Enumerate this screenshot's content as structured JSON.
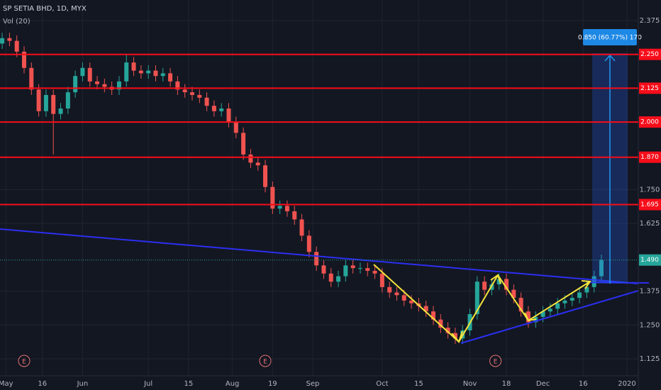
{
  "chart_data": {
    "type": "candlestick",
    "title": "SP SETIA BHD, 1D, MYX",
    "subtitle": "Vol (20)",
    "x": [
      0,
      2,
      4,
      6,
      8,
      10,
      12,
      14,
      16,
      18,
      20,
      22,
      24,
      26,
      28,
      30,
      32,
      34,
      36,
      38,
      40,
      42,
      44,
      46,
      48,
      50,
      52,
      54,
      56,
      58,
      60,
      62,
      64,
      66,
      68,
      70,
      72,
      74,
      76,
      78,
      80,
      82,
      84,
      86,
      88,
      90,
      92,
      94,
      96,
      98,
      100,
      102,
      104,
      106,
      108,
      110,
      112,
      114,
      116,
      118,
      120,
      122,
      124,
      126,
      128,
      130,
      132,
      134,
      136,
      138,
      140,
      142,
      144,
      146,
      148,
      150,
      152,
      154,
      156,
      158,
      160,
      162,
      164
    ],
    "open": [
      2.29,
      2.31,
      2.3,
      2.26,
      2.2,
      2.12,
      2.04,
      2.1,
      2.03,
      2.05,
      2.11,
      2.17,
      2.2,
      2.15,
      2.14,
      2.13,
      2.12,
      2.15,
      2.22,
      2.19,
      2.18,
      2.19,
      2.17,
      2.18,
      2.15,
      2.12,
      2.11,
      2.1,
      2.09,
      2.06,
      2.04,
      2.05,
      2.0,
      1.96,
      1.88,
      1.85,
      1.84,
      1.76,
      1.68,
      1.69,
      1.67,
      1.64,
      1.58,
      1.52,
      1.47,
      1.44,
      1.41,
      1.43,
      1.47,
      1.46,
      1.46,
      1.45,
      1.44,
      1.39,
      1.37,
      1.36,
      1.34,
      1.33,
      1.32,
      1.3,
      1.27,
      1.24,
      1.22,
      1.2,
      1.23,
      1.29,
      1.41,
      1.38,
      1.4,
      1.42,
      1.38,
      1.35,
      1.3,
      1.26,
      1.28,
      1.3,
      1.31,
      1.33,
      1.34,
      1.35,
      1.37,
      1.39,
      1.43
    ],
    "high": [
      2.33,
      2.33,
      2.32,
      2.28,
      2.22,
      2.14,
      2.12,
      2.12,
      2.07,
      2.13,
      2.19,
      2.22,
      2.22,
      2.17,
      2.16,
      2.15,
      2.17,
      2.25,
      2.24,
      2.21,
      2.21,
      2.21,
      2.2,
      2.2,
      2.17,
      2.14,
      2.13,
      2.12,
      2.11,
      2.08,
      2.07,
      2.07,
      2.02,
      1.98,
      1.9,
      1.87,
      1.86,
      1.78,
      1.71,
      1.71,
      1.69,
      1.66,
      1.6,
      1.54,
      1.49,
      1.46,
      1.45,
      1.49,
      1.49,
      1.48,
      1.48,
      1.47,
      1.46,
      1.41,
      1.39,
      1.38,
      1.36,
      1.35,
      1.34,
      1.32,
      1.29,
      1.26,
      1.24,
      1.25,
      1.31,
      1.43,
      1.43,
      1.42,
      1.44,
      1.44,
      1.4,
      1.37,
      1.32,
      1.3,
      1.32,
      1.33,
      1.35,
      1.36,
      1.37,
      1.39,
      1.41,
      1.45,
      1.51
    ],
    "low": [
      2.27,
      2.28,
      2.24,
      2.18,
      2.1,
      2.02,
      2.02,
      1.88,
      2.01,
      2.03,
      2.09,
      2.15,
      2.13,
      2.12,
      2.11,
      2.1,
      2.1,
      2.13,
      2.17,
      2.16,
      2.16,
      2.15,
      2.15,
      2.13,
      2.1,
      2.09,
      2.08,
      2.07,
      2.04,
      2.02,
      2.02,
      1.98,
      1.94,
      1.86,
      1.83,
      1.82,
      1.74,
      1.66,
      1.66,
      1.65,
      1.62,
      1.56,
      1.5,
      1.45,
      1.42,
      1.39,
      1.39,
      1.41,
      1.44,
      1.44,
      1.43,
      1.42,
      1.37,
      1.35,
      1.34,
      1.32,
      1.31,
      1.3,
      1.28,
      1.25,
      1.22,
      1.2,
      1.18,
      1.18,
      1.21,
      1.27,
      1.36,
      1.36,
      1.38,
      1.36,
      1.33,
      1.28,
      1.24,
      1.24,
      1.26,
      1.28,
      1.29,
      1.31,
      1.32,
      1.33,
      1.35,
      1.37,
      1.41
    ],
    "close": [
      2.31,
      2.3,
      2.26,
      2.2,
      2.12,
      2.04,
      2.1,
      2.03,
      2.05,
      2.11,
      2.17,
      2.2,
      2.15,
      2.14,
      2.13,
      2.12,
      2.15,
      2.22,
      2.19,
      2.18,
      2.19,
      2.17,
      2.18,
      2.15,
      2.12,
      2.11,
      2.1,
      2.09,
      2.06,
      2.04,
      2.05,
      2.0,
      1.96,
      1.88,
      1.85,
      1.84,
      1.76,
      1.68,
      1.69,
      1.67,
      1.64,
      1.58,
      1.52,
      1.47,
      1.44,
      1.41,
      1.43,
      1.47,
      1.46,
      1.46,
      1.45,
      1.44,
      1.39,
      1.37,
      1.36,
      1.34,
      1.33,
      1.32,
      1.3,
      1.27,
      1.24,
      1.22,
      1.2,
      1.23,
      1.29,
      1.41,
      1.38,
      1.4,
      1.42,
      1.38,
      1.35,
      1.3,
      1.26,
      1.28,
      1.3,
      1.31,
      1.33,
      1.34,
      1.35,
      1.37,
      1.39,
      1.43,
      1.49
    ],
    "up_color": "#26a69a",
    "down_color": "#ef5350",
    "xlim": [
      -0.6,
      174.1
    ],
    "xticks": [
      {
        "value": 1,
        "label": "May"
      },
      {
        "value": 11,
        "label": "16"
      },
      {
        "value": 22,
        "label": "Jun"
      },
      {
        "value": 40,
        "label": "Jul"
      },
      {
        "value": 51,
        "label": "15"
      },
      {
        "value": 63,
        "label": "Aug"
      },
      {
        "value": 74,
        "label": "19"
      },
      {
        "value": 85,
        "label": "Sep"
      },
      {
        "value": 104,
        "label": "Oct"
      },
      {
        "value": 114,
        "label": "15"
      },
      {
        "value": 128,
        "label": "Nov"
      },
      {
        "value": 138,
        "label": "18"
      },
      {
        "value": 148,
        "label": "Dec"
      },
      {
        "value": 159,
        "label": "16"
      },
      {
        "value": 171,
        "label": "2020"
      }
    ],
    "ylim": [
      1.062,
      2.451
    ],
    "yticks": [
      {
        "value": 2.375,
        "label": "2.375"
      },
      {
        "value": 1.75,
        "label": "1.750"
      },
      {
        "value": 1.625,
        "label": "1.625"
      },
      {
        "value": 1.375,
        "label": "1.375"
      },
      {
        "value": 1.25,
        "label": "1.250"
      },
      {
        "value": 1.125,
        "label": "1.125"
      }
    ],
    "levels": [
      {
        "value": 2.25,
        "label": "2.250"
      },
      {
        "value": 2.125,
        "label": "2.125"
      },
      {
        "value": 2.0,
        "label": "2.000"
      },
      {
        "value": 1.87,
        "label": "1.870"
      },
      {
        "value": 1.695,
        "label": "1.695"
      }
    ],
    "level_color": "#f70d1a",
    "last_price": {
      "value": 1.49,
      "label": "1.490"
    },
    "events": [
      {
        "x": 6,
        "label": "E"
      },
      {
        "x": 72,
        "label": "E"
      },
      {
        "x": 135,
        "label": "E"
      }
    ],
    "measure_label": "0.850 (60.77%) 170",
    "grid": true
  }
}
